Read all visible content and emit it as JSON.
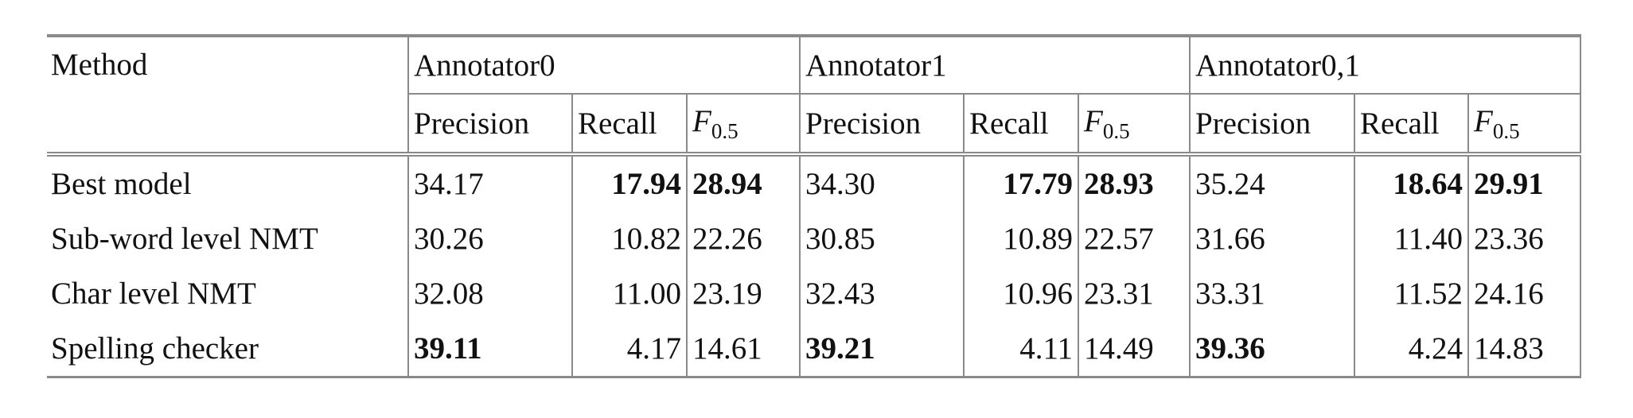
{
  "table": {
    "header": {
      "method": "Method",
      "groups": [
        "Annotator0",
        "Annotator1",
        "Annotator0,1"
      ]
    },
    "subheader": [
      {
        "text": "Precision"
      },
      {
        "text": "Recall"
      },
      {
        "main": "F",
        "sub": "0.5"
      }
    ],
    "rows": [
      {
        "method": "Best model",
        "values": [
          "34.17",
          "17.94",
          "28.94",
          "34.30",
          "17.79",
          "28.93",
          "35.24",
          "18.64",
          "29.91"
        ],
        "bold": [
          1,
          2,
          4,
          5,
          7,
          8
        ]
      },
      {
        "method": "Sub-word level NMT",
        "values": [
          "30.26",
          "10.82",
          "22.26",
          "30.85",
          "10.89",
          "22.57",
          "31.66",
          "11.40",
          "23.36"
        ],
        "bold": []
      },
      {
        "method": "Char level NMT",
        "values": [
          "32.08",
          "11.00",
          "23.19",
          "32.43",
          "10.96",
          "23.31",
          "33.31",
          "11.52",
          "24.16"
        ],
        "bold": []
      },
      {
        "method": "Spelling checker",
        "values": [
          "39.11",
          "4.17",
          "14.61",
          "39.21",
          "4.11",
          "14.49",
          "39.36",
          "4.24",
          "14.83"
        ],
        "bold": [
          0,
          3,
          6
        ]
      }
    ]
  }
}
